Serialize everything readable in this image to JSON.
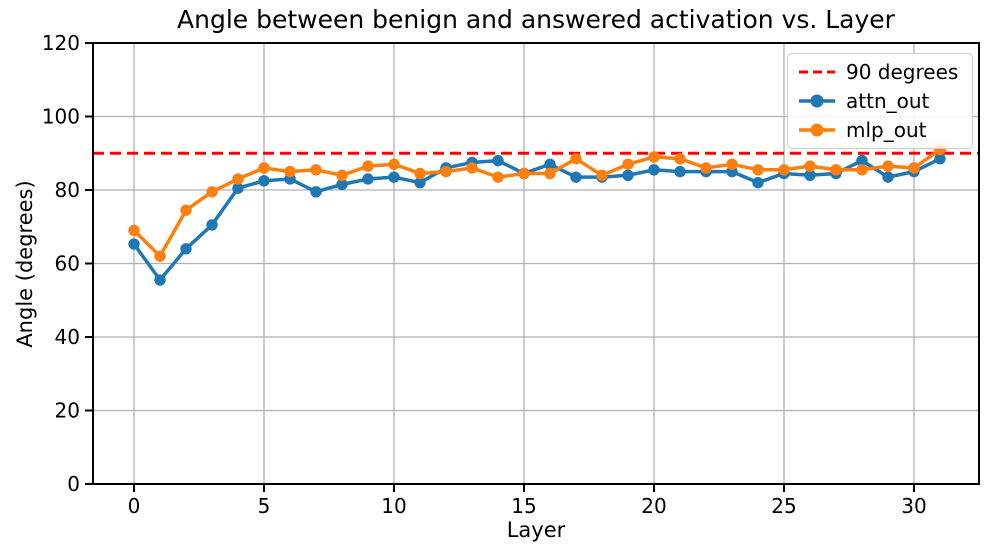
{
  "chart_data": {
    "type": "line",
    "title": "Angle between benign and answered activation vs. Layer",
    "xlabel": "Layer",
    "ylabel": "Angle (degrees)",
    "x": [
      0,
      1,
      2,
      3,
      4,
      5,
      6,
      7,
      8,
      9,
      10,
      11,
      12,
      13,
      14,
      15,
      16,
      17,
      18,
      19,
      20,
      21,
      22,
      23,
      24,
      25,
      26,
      27,
      28,
      29,
      30,
      31
    ],
    "series": [
      {
        "name": "attn_out",
        "color": "#1f77b4",
        "values": [
          65.3,
          55.5,
          64.0,
          70.5,
          80.5,
          82.5,
          83.0,
          79.5,
          81.5,
          83.0,
          83.5,
          82.0,
          86.0,
          87.5,
          88.0,
          84.5,
          87.0,
          83.5,
          83.5,
          84.0,
          85.5,
          85.0,
          85.0,
          85.0,
          82.0,
          84.5,
          84.0,
          84.5,
          88.0,
          83.5,
          85.0,
          88.5
        ]
      },
      {
        "name": "mlp_out",
        "color": "#ff7f0e",
        "values": [
          69.0,
          62.0,
          74.5,
          79.5,
          83.0,
          86.0,
          85.0,
          85.5,
          84.0,
          86.5,
          87.0,
          84.5,
          85.0,
          86.0,
          83.5,
          84.5,
          84.5,
          88.5,
          84.0,
          87.0,
          89.0,
          88.5,
          86.0,
          87.0,
          85.5,
          85.5,
          86.5,
          85.5,
          85.5,
          86.5,
          86.0,
          91.0
        ]
      }
    ],
    "reference_line": {
      "label": "90 degrees",
      "y": 90,
      "color": "#ff0000",
      "style": "dashed"
    },
    "annotations": {
      "pale_marker": {
        "x": 31,
        "y": 91.5,
        "opacity": 0.3
      }
    },
    "xlim": [
      -1.577,
      32.5
    ],
    "ylim": [
      0,
      120
    ],
    "x_ticks": [
      0,
      5,
      10,
      15,
      20,
      25,
      30
    ],
    "y_ticks": [
      0,
      20,
      40,
      60,
      80,
      100,
      120
    ],
    "grid": true,
    "grid_color": "#b0b0b0",
    "spine_color": "#000000",
    "legend_position": "upper right"
  }
}
